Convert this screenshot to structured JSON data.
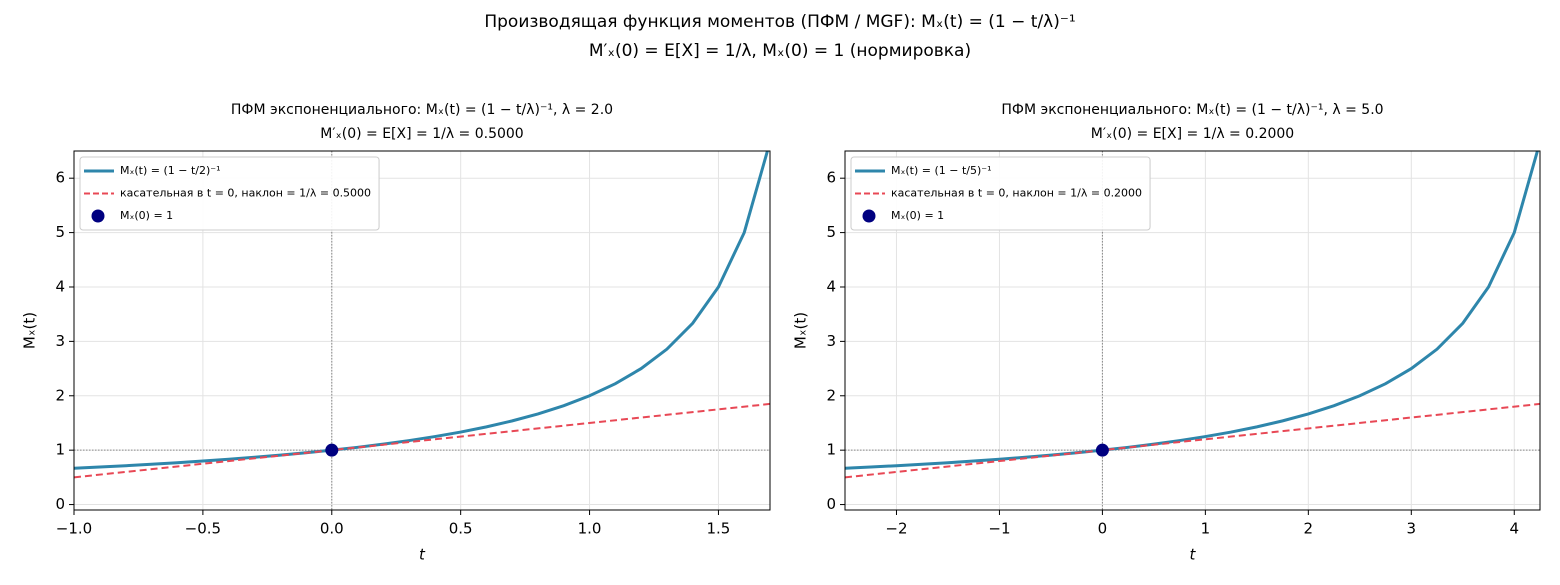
{
  "figure_title": [
    "Производящая функция моментов (ПФМ / MGF): Mₓ(t) = (1 − t/λ)⁻¹",
    "M′ₓ(0) = E[X] = 1/λ,  Mₓ(0) = 1 (нормировка)"
  ],
  "chart_data": [
    {
      "type": "line",
      "title": [
        "ПФМ экспоненциального: Mₓ(t) = (1 − t/λ)⁻¹,  λ = 2.0",
        "M′ₓ(0) = E[X] = 1/λ = 0.5000"
      ],
      "x_label": "t",
      "y_label": "Mₓ(t)",
      "xlim": [
        -1,
        1.7
      ],
      "ylim": [
        -0.1,
        6.5
      ],
      "xticks": [
        {
          "value": -1,
          "label": "−1.0"
        },
        {
          "value": -0.5,
          "label": "−0.5"
        },
        {
          "value": 0,
          "label": "0.0"
        },
        0.5,
        {
          "value": 1,
          "label": "1.0"
        },
        1.5
      ],
      "yticks": [
        0,
        1,
        2,
        3,
        4,
        5,
        6
      ],
      "grid": true,
      "legend": "upper left",
      "series": [
        {
          "name": "Mₓ(t) = (1 − t/2)⁻¹",
          "color": "#2e86ab",
          "style": "solid",
          "x": [
            -1,
            -0.9,
            -0.8,
            -0.7,
            -0.6,
            -0.5,
            -0.4,
            -0.3,
            -0.2,
            -0.1,
            0,
            0.1,
            0.2,
            0.3,
            0.4,
            0.5,
            0.6,
            0.7,
            0.8,
            0.9,
            1,
            1.1,
            1.2,
            1.3,
            1.4,
            1.5,
            1.6,
            1.7
          ],
          "values": [
            0.6667,
            0.6897,
            0.7143,
            0.7407,
            0.7692,
            0.8,
            0.8333,
            0.8696,
            0.9091,
            0.9524,
            1,
            1.0526,
            1.1111,
            1.1765,
            1.25,
            1.3333,
            1.4286,
            1.5385,
            1.6667,
            1.8182,
            2,
            2.2222,
            2.5,
            2.8571,
            3.3333,
            4,
            5,
            6.6667
          ]
        },
        {
          "name": "касательная в t = 0, наклон  = 1/λ = 0.5000",
          "color": "#e84855",
          "style": "dashed",
          "x": [
            -1,
            1.7
          ],
          "values": [
            0.5,
            1.85
          ]
        },
        {
          "name": "Mₓ(0) = 1",
          "color": "#000080",
          "style": "marker",
          "x": [
            0
          ],
          "values": [
            1
          ]
        }
      ]
    },
    {
      "type": "line",
      "title": [
        "ПФМ экспоненциального: Mₓ(t) = (1 − t/λ)⁻¹,  λ = 5.0",
        "M′ₓ(0) = E[X] = 1/λ = 0.2000"
      ],
      "x_label": "t",
      "y_label": "Mₓ(t)",
      "xlim": [
        -2.5,
        4.25
      ],
      "ylim": [
        -0.1,
        6.5
      ],
      "xticks": [
        {
          "value": -2,
          "label": "−2"
        },
        {
          "value": -1,
          "label": "−1"
        },
        0,
        1,
        2,
        3,
        4
      ],
      "yticks": [
        0,
        1,
        2,
        3,
        4,
        5,
        6
      ],
      "grid": true,
      "legend": "upper left",
      "series": [
        {
          "name": "Mₓ(t) = (1 − t/5)⁻¹",
          "color": "#2e86ab",
          "style": "solid",
          "x": [
            -2.5,
            -2.25,
            -2,
            -1.75,
            -1.5,
            -1.25,
            -1,
            -0.75,
            -0.5,
            -0.25,
            0,
            0.25,
            0.5,
            0.75,
            1,
            1.25,
            1.5,
            1.75,
            2,
            2.25,
            2.5,
            2.75,
            3,
            3.25,
            3.5,
            3.75,
            4,
            4.25
          ],
          "values": [
            0.6667,
            0.6897,
            0.7143,
            0.7407,
            0.7692,
            0.8,
            0.8333,
            0.8696,
            0.9091,
            0.9524,
            1,
            1.0526,
            1.1111,
            1.1765,
            1.25,
            1.3333,
            1.4286,
            1.5385,
            1.6667,
            1.8182,
            2,
            2.2222,
            2.5,
            2.8571,
            3.3333,
            4,
            5,
            6.6667
          ]
        },
        {
          "name": "касательная в t = 0, наклон  = 1/λ = 0.2000",
          "color": "#e84855",
          "style": "dashed",
          "x": [
            -2.5,
            4.25
          ],
          "values": [
            0.5,
            1.85
          ]
        },
        {
          "name": "Mₓ(0) = 1",
          "color": "#000080",
          "style": "marker",
          "x": [
            0
          ],
          "values": [
            1
          ]
        }
      ]
    }
  ]
}
